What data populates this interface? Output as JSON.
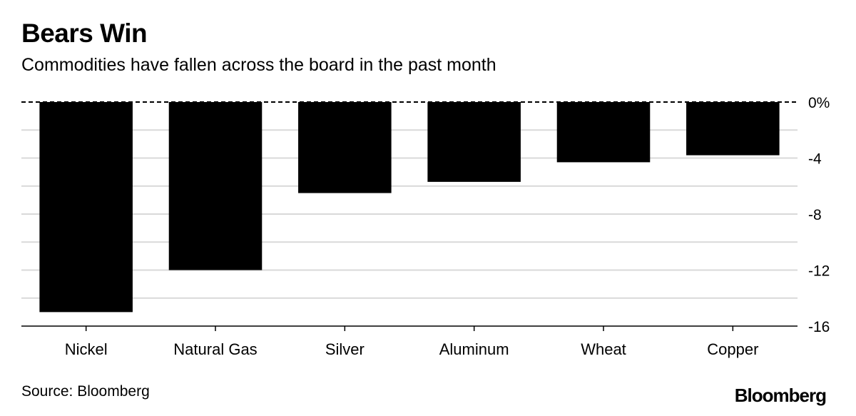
{
  "chart_data": {
    "type": "bar",
    "title": "Bears Win",
    "subtitle": "Commodities have fallen across the board in the past month",
    "categories": [
      "Nickel",
      "Natural Gas",
      "Silver",
      "Aluminum",
      "Wheat",
      "Copper"
    ],
    "values": [
      -15.0,
      -12.0,
      -6.5,
      -5.7,
      -4.3,
      -3.8
    ],
    "ylim": [
      -16,
      0
    ],
    "yticks": [
      0,
      -4,
      -8,
      -12,
      -16
    ],
    "ytick_labels": [
      "0%",
      "-4",
      "-8",
      "-12",
      "-16"
    ],
    "ygrid_step": 2,
    "grid": true,
    "zero_line_style": "dashed",
    "yaxis_position": "right",
    "bar_color": "#000000",
    "grid_color": "#d9d9d9"
  },
  "footer": {
    "source": "Source: Bloomberg",
    "brand": "Bloomberg"
  }
}
